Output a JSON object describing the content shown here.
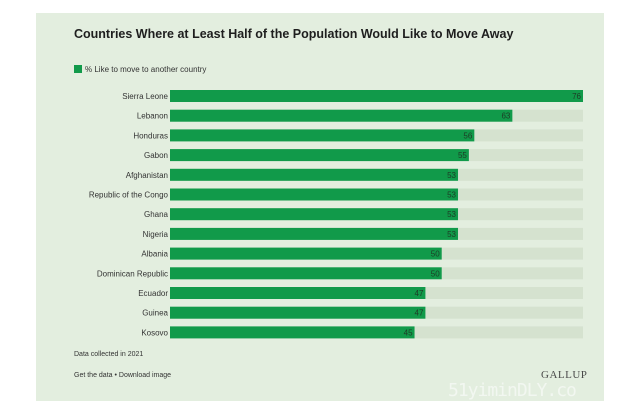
{
  "title": "Countries Where at Least Half of the Population Would Like to Move Away",
  "legend_label": "% Like to move to another country",
  "footnote": "Data collected in 2021",
  "links": {
    "get_data": "Get the data",
    "separator": "•",
    "download": "Download image"
  },
  "brand": "GALLUP",
  "watermark": "51yiminDLY.co",
  "colors": {
    "background": "#e3eedf",
    "bar": "#119a4a",
    "track": "#d5e2cf",
    "label": "#333333",
    "value": "#1e3b26"
  },
  "chart_data": {
    "type": "bar",
    "orientation": "horizontal",
    "title": "Countries Where at Least Half of the Population Would Like to Move Away",
    "categories": [
      "Sierra Leone",
      "Lebanon",
      "Honduras",
      "Gabon",
      "Afghanistan",
      "Republic of the Congo",
      "Ghana",
      "Nigeria",
      "Albania",
      "Dominican Republic",
      "Ecuador",
      "Guinea",
      "Kosovo"
    ],
    "series": [
      {
        "name": "% Like to move to another country",
        "values": [
          76,
          63,
          56,
          55,
          53,
          53,
          53,
          53,
          50,
          50,
          47,
          47,
          45
        ]
      }
    ],
    "xlim": [
      0,
      76
    ],
    "data_labels": true,
    "legend_position": "top-left",
    "grid": false
  }
}
